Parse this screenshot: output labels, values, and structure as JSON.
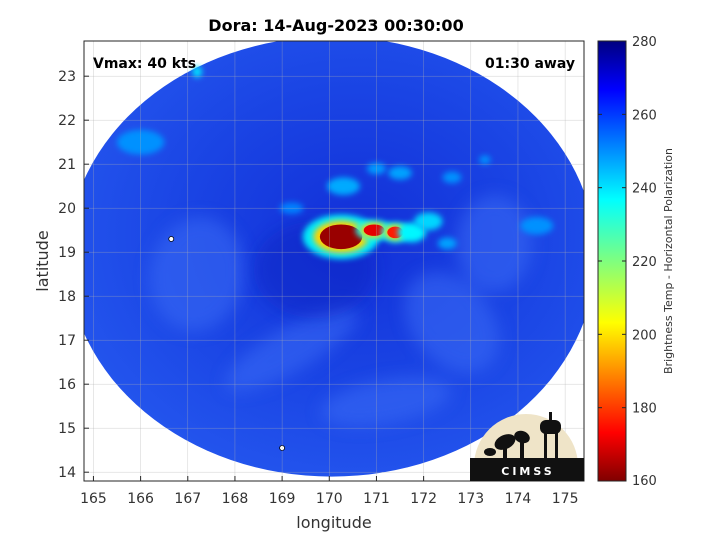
{
  "chart_data": {
    "type": "heatmap",
    "title": "Dora: 14-Aug-2023 00:30:00",
    "xlabel": "longitude",
    "ylabel": "latitude",
    "xlim": [
      164.8,
      175.4
    ],
    "ylim": [
      13.8,
      23.8
    ],
    "xticks": [
      165,
      166,
      167,
      168,
      169,
      170,
      171,
      172,
      173,
      174,
      175
    ],
    "yticks": [
      14,
      15,
      16,
      17,
      18,
      19,
      20,
      21,
      22,
      23
    ],
    "grid": true,
    "annotations": {
      "vmax": "Vmax: 40 kts",
      "time_away": "01:30 away"
    },
    "colorbar": {
      "label": "Brightness Temp - Horizontal Polarization",
      "min": 160,
      "max": 280,
      "ticks": [
        160,
        180,
        200,
        220,
        240,
        260,
        280
      ],
      "colormap": "jet"
    },
    "swath": {
      "center_lon": 170.05,
      "center_lat": 18.9,
      "lon_radius": 5.6,
      "lat_radius": 5.0
    },
    "features": [
      {
        "lon": 170.25,
        "lat": 19.35,
        "value": 163,
        "lon_r": 0.45,
        "lat_r": 0.28
      },
      {
        "lon": 170.95,
        "lat": 19.5,
        "value": 172,
        "lon_r": 0.22,
        "lat_r": 0.13
      },
      {
        "lon": 171.4,
        "lat": 19.45,
        "value": 178,
        "lon_r": 0.17,
        "lat_r": 0.13
      },
      {
        "lon": 171.75,
        "lat": 19.45,
        "value": 236,
        "lon_r": 0.3,
        "lat_r": 0.22
      },
      {
        "lon": 172.1,
        "lat": 19.7,
        "value": 240,
        "lon_r": 0.3,
        "lat_r": 0.2
      },
      {
        "lon": 170.3,
        "lat": 20.5,
        "value": 245,
        "lon_r": 0.35,
        "lat_r": 0.2
      },
      {
        "lon": 171.5,
        "lat": 20.8,
        "value": 246,
        "lon_r": 0.25,
        "lat_r": 0.15
      },
      {
        "lon": 171.0,
        "lat": 20.9,
        "value": 247,
        "lon_r": 0.2,
        "lat_r": 0.13
      },
      {
        "lon": 172.6,
        "lat": 20.7,
        "value": 248,
        "lon_r": 0.2,
        "lat_r": 0.13
      },
      {
        "lon": 167.2,
        "lat": 23.1,
        "value": 238,
        "lon_r": 0.1,
        "lat_r": 0.13
      },
      {
        "lon": 166.0,
        "lat": 21.5,
        "value": 248,
        "lon_r": 0.5,
        "lat_r": 0.28
      },
      {
        "lon": 169.2,
        "lat": 20.0,
        "value": 250,
        "lon_r": 0.25,
        "lat_r": 0.13
      },
      {
        "lon": 173.3,
        "lat": 21.1,
        "value": 248,
        "lon_r": 0.12,
        "lat_r": 0.1
      },
      {
        "lon": 172.5,
        "lat": 19.2,
        "value": 246,
        "lon_r": 0.2,
        "lat_r": 0.13
      },
      {
        "lon": 174.4,
        "lat": 19.6,
        "value": 248,
        "lon_r": 0.35,
        "lat_r": 0.2
      }
    ],
    "logo_text": "CIMSS"
  }
}
